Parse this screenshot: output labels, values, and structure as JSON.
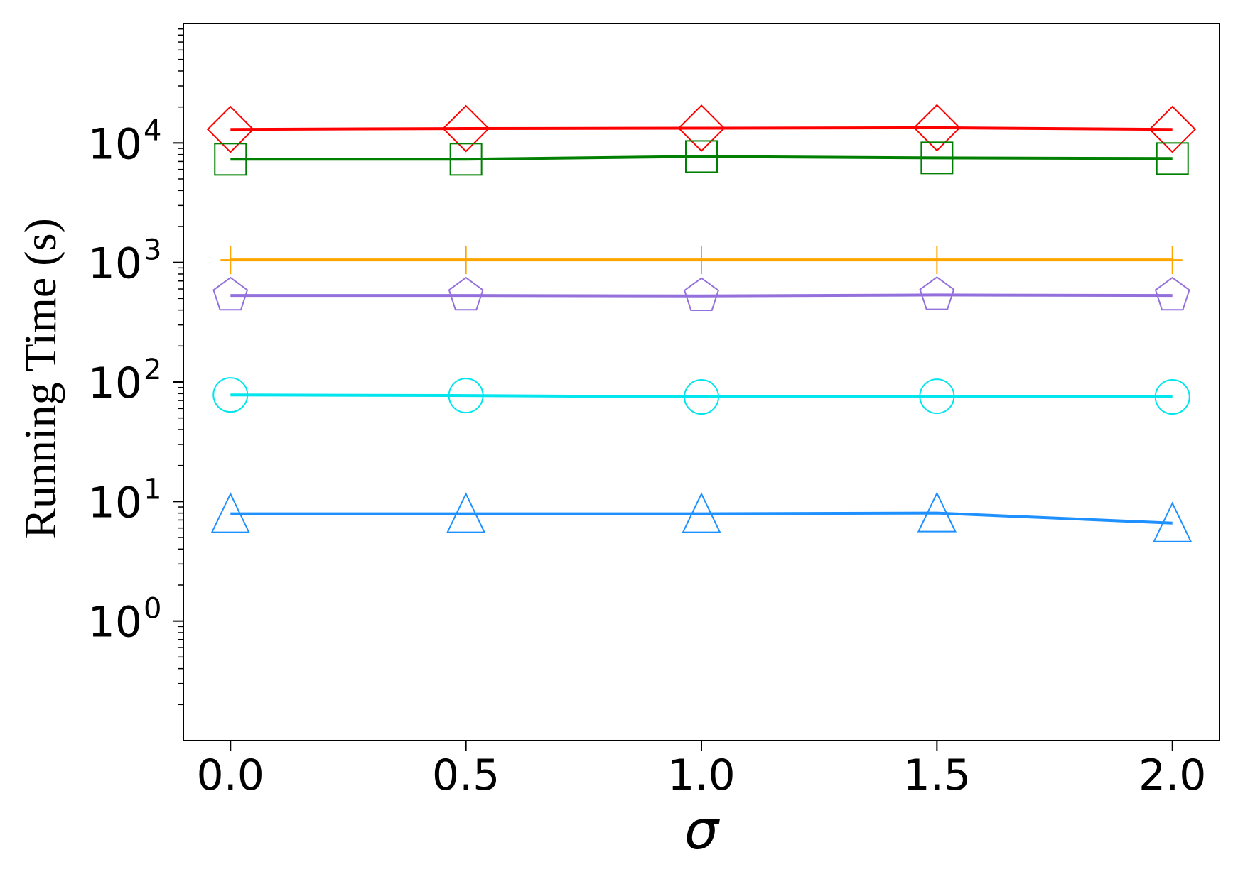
{
  "chart_data": {
    "type": "line",
    "title": "",
    "xlabel": "σ",
    "ylabel": "Running Time (s)",
    "y_scale": "log",
    "x": [
      0.0,
      0.5,
      1.0,
      1.5,
      2.0
    ],
    "xlim": [
      -0.1,
      2.1
    ],
    "ylim": [
      0.1,
      100000
    ],
    "x_ticks": [
      {
        "value": 0.0,
        "label": "0.0"
      },
      {
        "value": 0.5,
        "label": "0.5"
      },
      {
        "value": 1.0,
        "label": "1.0"
      },
      {
        "value": 1.5,
        "label": "1.5"
      },
      {
        "value": 2.0,
        "label": "2.0"
      }
    ],
    "y_ticks": [
      {
        "value": 1,
        "base": "10",
        "exp": "0"
      },
      {
        "value": 10,
        "base": "10",
        "exp": "1"
      },
      {
        "value": 100,
        "base": "10",
        "exp": "2"
      },
      {
        "value": 1000,
        "base": "10",
        "exp": "3"
      },
      {
        "value": 10000,
        "base": "10",
        "exp": "4"
      }
    ],
    "grid": false,
    "legend": "none",
    "series": [
      {
        "color": "#ff0000",
        "marker": "diamond",
        "values": [
          13000,
          13200,
          13300,
          13400,
          13000
        ]
      },
      {
        "color": "#008000",
        "marker": "square",
        "values": [
          7300,
          7300,
          7700,
          7500,
          7400
        ]
      },
      {
        "color": "#ffa500",
        "marker": "plus",
        "values": [
          1050,
          1050,
          1050,
          1050,
          1050
        ]
      },
      {
        "color": "#9370db",
        "marker": "pentagon",
        "values": [
          530,
          530,
          525,
          535,
          530
        ]
      },
      {
        "color": "#00e5ee",
        "marker": "circle",
        "values": [
          78,
          77,
          75,
          76,
          75
        ]
      },
      {
        "color": "#1e90ff",
        "marker": "triangle",
        "values": [
          7.9,
          7.9,
          7.9,
          8.0,
          6.6
        ]
      }
    ]
  }
}
